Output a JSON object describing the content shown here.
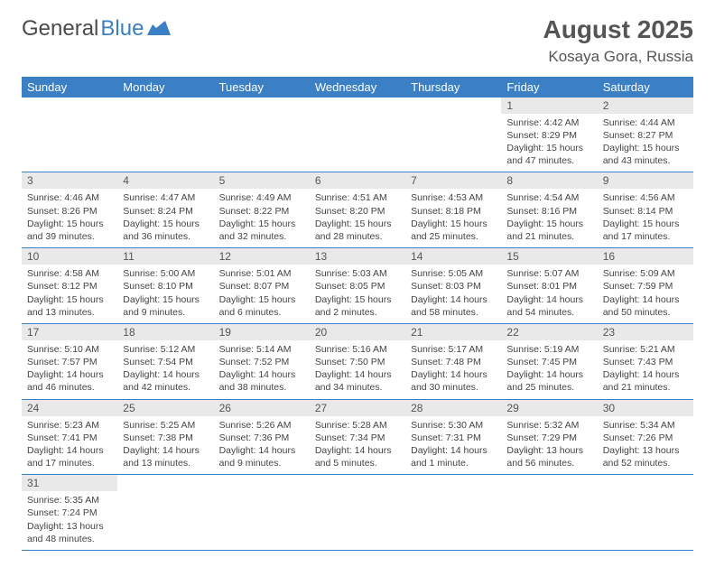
{
  "brand": {
    "part1": "General",
    "part2": "Blue"
  },
  "title": "August 2025",
  "location": "Kosaya Gora, Russia",
  "colors": {
    "accent": "#3b7fc4",
    "header_text": "#ffffff",
    "daynum_bg": "#e9e9e9",
    "text": "#444444"
  },
  "day_headers": [
    "Sunday",
    "Monday",
    "Tuesday",
    "Wednesday",
    "Thursday",
    "Friday",
    "Saturday"
  ],
  "weeks": [
    [
      {
        "empty": true
      },
      {
        "empty": true
      },
      {
        "empty": true
      },
      {
        "empty": true
      },
      {
        "empty": true
      },
      {
        "n": "1",
        "sr": "4:42 AM",
        "ss": "8:29 PM",
        "dl": "15 hours and 47 minutes."
      },
      {
        "n": "2",
        "sr": "4:44 AM",
        "ss": "8:27 PM",
        "dl": "15 hours and 43 minutes."
      }
    ],
    [
      {
        "n": "3",
        "sr": "4:46 AM",
        "ss": "8:26 PM",
        "dl": "15 hours and 39 minutes."
      },
      {
        "n": "4",
        "sr": "4:47 AM",
        "ss": "8:24 PM",
        "dl": "15 hours and 36 minutes."
      },
      {
        "n": "5",
        "sr": "4:49 AM",
        "ss": "8:22 PM",
        "dl": "15 hours and 32 minutes."
      },
      {
        "n": "6",
        "sr": "4:51 AM",
        "ss": "8:20 PM",
        "dl": "15 hours and 28 minutes."
      },
      {
        "n": "7",
        "sr": "4:53 AM",
        "ss": "8:18 PM",
        "dl": "15 hours and 25 minutes."
      },
      {
        "n": "8",
        "sr": "4:54 AM",
        "ss": "8:16 PM",
        "dl": "15 hours and 21 minutes."
      },
      {
        "n": "9",
        "sr": "4:56 AM",
        "ss": "8:14 PM",
        "dl": "15 hours and 17 minutes."
      }
    ],
    [
      {
        "n": "10",
        "sr": "4:58 AM",
        "ss": "8:12 PM",
        "dl": "15 hours and 13 minutes."
      },
      {
        "n": "11",
        "sr": "5:00 AM",
        "ss": "8:10 PM",
        "dl": "15 hours and 9 minutes."
      },
      {
        "n": "12",
        "sr": "5:01 AM",
        "ss": "8:07 PM",
        "dl": "15 hours and 6 minutes."
      },
      {
        "n": "13",
        "sr": "5:03 AM",
        "ss": "8:05 PM",
        "dl": "15 hours and 2 minutes."
      },
      {
        "n": "14",
        "sr": "5:05 AM",
        "ss": "8:03 PM",
        "dl": "14 hours and 58 minutes."
      },
      {
        "n": "15",
        "sr": "5:07 AM",
        "ss": "8:01 PM",
        "dl": "14 hours and 54 minutes."
      },
      {
        "n": "16",
        "sr": "5:09 AM",
        "ss": "7:59 PM",
        "dl": "14 hours and 50 minutes."
      }
    ],
    [
      {
        "n": "17",
        "sr": "5:10 AM",
        "ss": "7:57 PM",
        "dl": "14 hours and 46 minutes."
      },
      {
        "n": "18",
        "sr": "5:12 AM",
        "ss": "7:54 PM",
        "dl": "14 hours and 42 minutes."
      },
      {
        "n": "19",
        "sr": "5:14 AM",
        "ss": "7:52 PM",
        "dl": "14 hours and 38 minutes."
      },
      {
        "n": "20",
        "sr": "5:16 AM",
        "ss": "7:50 PM",
        "dl": "14 hours and 34 minutes."
      },
      {
        "n": "21",
        "sr": "5:17 AM",
        "ss": "7:48 PM",
        "dl": "14 hours and 30 minutes."
      },
      {
        "n": "22",
        "sr": "5:19 AM",
        "ss": "7:45 PM",
        "dl": "14 hours and 25 minutes."
      },
      {
        "n": "23",
        "sr": "5:21 AM",
        "ss": "7:43 PM",
        "dl": "14 hours and 21 minutes."
      }
    ],
    [
      {
        "n": "24",
        "sr": "5:23 AM",
        "ss": "7:41 PM",
        "dl": "14 hours and 17 minutes."
      },
      {
        "n": "25",
        "sr": "5:25 AM",
        "ss": "7:38 PM",
        "dl": "14 hours and 13 minutes."
      },
      {
        "n": "26",
        "sr": "5:26 AM",
        "ss": "7:36 PM",
        "dl": "14 hours and 9 minutes."
      },
      {
        "n": "27",
        "sr": "5:28 AM",
        "ss": "7:34 PM",
        "dl": "14 hours and 5 minutes."
      },
      {
        "n": "28",
        "sr": "5:30 AM",
        "ss": "7:31 PM",
        "dl": "14 hours and 1 minute."
      },
      {
        "n": "29",
        "sr": "5:32 AM",
        "ss": "7:29 PM",
        "dl": "13 hours and 56 minutes."
      },
      {
        "n": "30",
        "sr": "5:34 AM",
        "ss": "7:26 PM",
        "dl": "13 hours and 52 minutes."
      }
    ],
    [
      {
        "n": "31",
        "sr": "5:35 AM",
        "ss": "7:24 PM",
        "dl": "13 hours and 48 minutes."
      },
      {
        "empty": true
      },
      {
        "empty": true
      },
      {
        "empty": true
      },
      {
        "empty": true
      },
      {
        "empty": true
      },
      {
        "empty": true
      }
    ]
  ],
  "labels": {
    "sunrise": "Sunrise:",
    "sunset": "Sunset:",
    "daylight": "Daylight:"
  }
}
